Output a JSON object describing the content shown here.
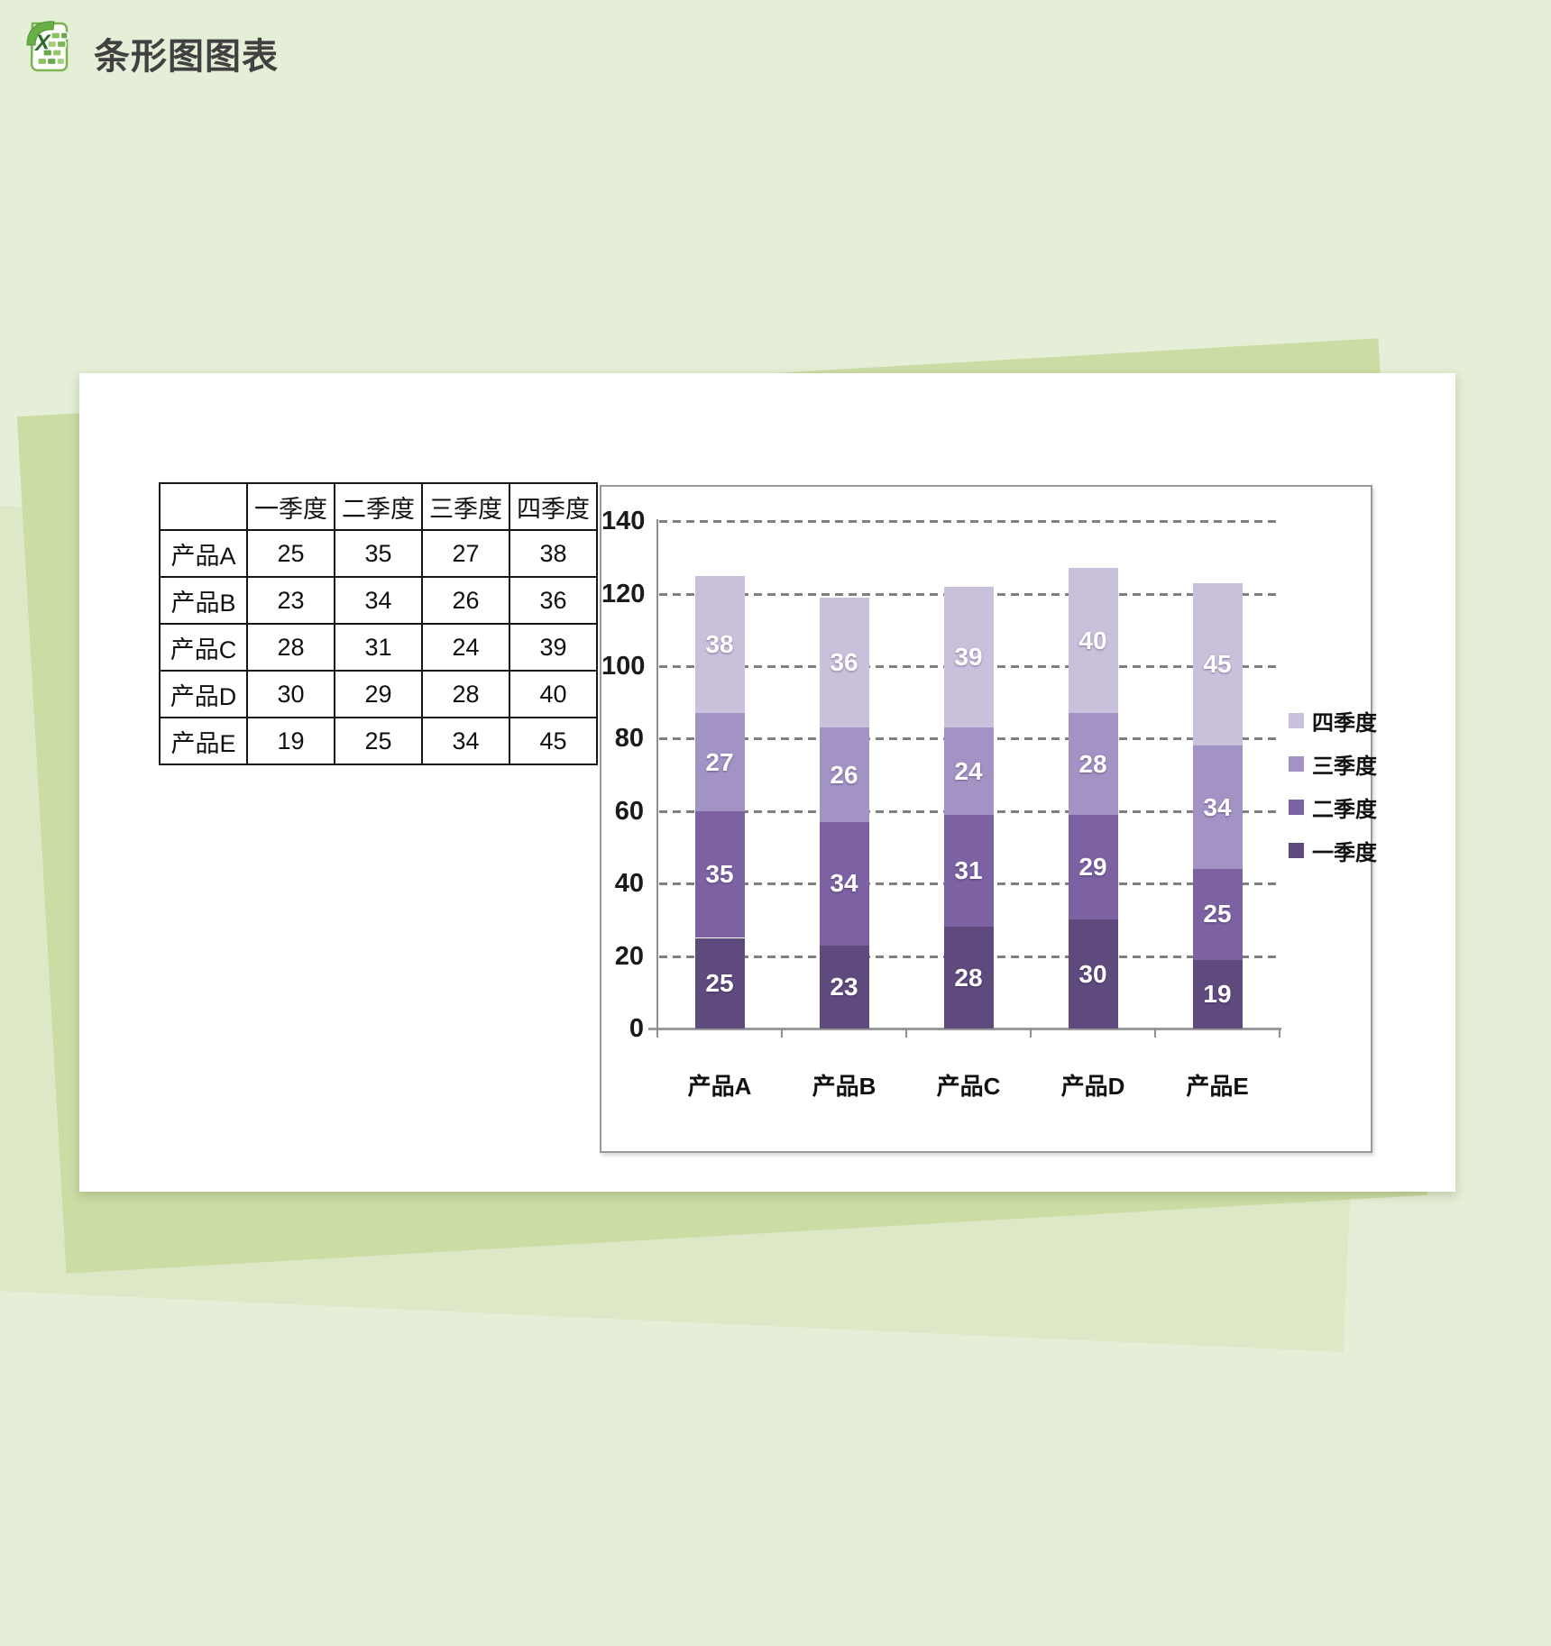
{
  "page": {
    "title": "条形图图表"
  },
  "icons": {
    "app": "excel-icon"
  },
  "colors": {
    "background": "#e5eed6",
    "backdrop_dark": "#cbdca4",
    "backdrop_light": "#dce8c6",
    "card": "#ffffff",
    "title_text": "#414141",
    "table_border": "#161616",
    "chart_border": "#97999b",
    "gridline": "#7f7f7f",
    "axis": "#9a9a9a",
    "bar_label_text": "#ffffff",
    "series_q1": "#5e4a7d",
    "series_q2": "#7c62a2",
    "series_q3": "#a392c4",
    "series_q4": "#c9c0dc"
  },
  "table": {
    "corner_label": "",
    "columns": [
      "一季度",
      "二季度",
      "三季度",
      "四季度"
    ],
    "rows": [
      {
        "label": "产品A",
        "values": [
          25,
          35,
          27,
          38
        ]
      },
      {
        "label": "产品B",
        "values": [
          23,
          34,
          26,
          36
        ]
      },
      {
        "label": "产品C",
        "values": [
          28,
          31,
          24,
          39
        ]
      },
      {
        "label": "产品D",
        "values": [
          30,
          29,
          28,
          40
        ]
      },
      {
        "label": "产品E",
        "values": [
          19,
          25,
          34,
          45
        ]
      }
    ]
  },
  "chart_data": {
    "type": "bar",
    "stacked": true,
    "title": "",
    "xlabel": "",
    "ylabel": "",
    "categories": [
      "产品A",
      "产品B",
      "产品C",
      "产品D",
      "产品E"
    ],
    "series": [
      {
        "name": "一季度",
        "color": "#5e4a7d",
        "values": [
          25,
          23,
          28,
          30,
          19
        ]
      },
      {
        "name": "二季度",
        "color": "#7c62a2",
        "values": [
          35,
          34,
          31,
          29,
          25
        ]
      },
      {
        "name": "三季度",
        "color": "#a392c4",
        "values": [
          27,
          26,
          24,
          28,
          34
        ]
      },
      {
        "name": "四季度",
        "color": "#c9c0dc",
        "values": [
          38,
          36,
          39,
          40,
          45
        ]
      }
    ],
    "stack_totals": [
      125,
      119,
      122,
      127,
      123
    ],
    "ylim": [
      0,
      140
    ],
    "yticks": [
      0,
      20,
      40,
      60,
      80,
      100,
      120,
      140
    ],
    "grid": "horizontal-dashed",
    "legend_position": "right",
    "legend_order": [
      "四季度",
      "三季度",
      "二季度",
      "一季度"
    ],
    "value_labels": "inside-center-white"
  }
}
